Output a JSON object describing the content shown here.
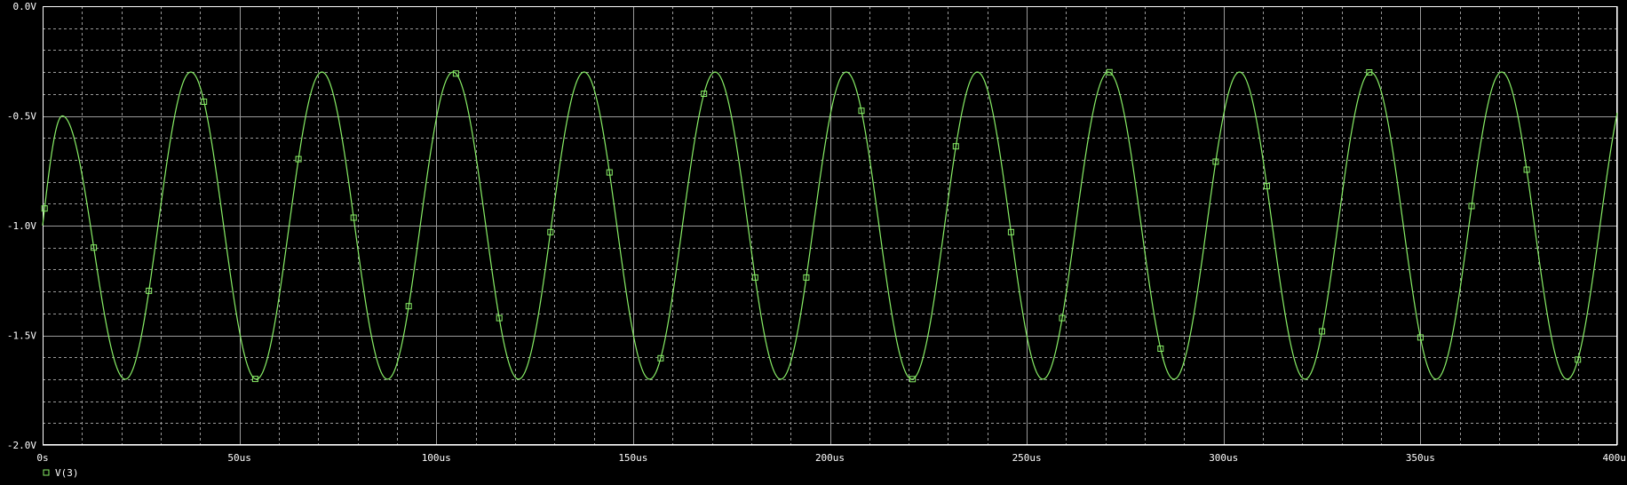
{
  "chart_data": {
    "type": "line",
    "x_unit": "us",
    "xlim": [
      0,
      400
    ],
    "ylim": [
      -2.0,
      0.0
    ],
    "x_ticks": [
      0,
      50,
      100,
      150,
      200,
      250,
      300,
      350,
      400
    ],
    "x_tick_labels": [
      "0s",
      "50us",
      "100us",
      "150us",
      "200us",
      "250us",
      "300us",
      "350us",
      "400us"
    ],
    "y_ticks": [
      0.0,
      -0.5,
      -1.0,
      -1.5,
      -2.0
    ],
    "y_tick_labels": [
      "0.0V",
      "-0.5V",
      "-1.0V",
      "-1.5V",
      "-2.0V"
    ],
    "minor_x_step": 10,
    "minor_y_step": 0.1,
    "grid": true,
    "background": "#000000",
    "axis_color": "#ffffff",
    "grid_color": "#9a9a9a",
    "series": [
      {
        "name": "V(3)",
        "color": "#88ee66",
        "marker": "square",
        "waveform": {
          "kind": "sine",
          "offset": -1.0,
          "amplitude": 0.7,
          "period_us": 33.3,
          "startup": {
            "until_us": 12,
            "min": -1.0,
            "max": -0.5
          }
        },
        "markers_x": [
          0.5,
          13,
          27,
          41,
          54,
          65,
          79,
          93,
          105,
          116,
          129,
          144,
          157,
          168,
          181,
          194,
          208,
          221,
          232,
          246,
          259,
          271,
          284,
          298,
          311,
          325,
          337,
          350,
          363,
          377,
          390
        ]
      }
    ],
    "legend": {
      "placement": "bottom-left",
      "entries": [
        "V(3)"
      ]
    }
  }
}
